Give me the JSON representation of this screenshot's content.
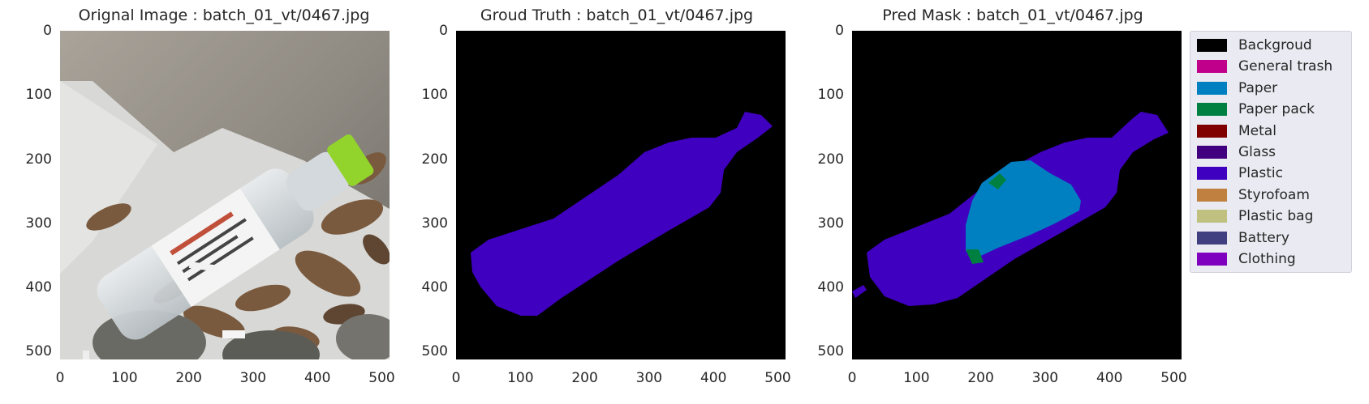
{
  "panels": [
    {
      "title": "Orignal Image : batch_01_vt/0467.jpg"
    },
    {
      "title": "Groud Truth : batch_01_vt/0467.jpg"
    },
    {
      "title": "Pred Mask : batch_01_vt/0467.jpg"
    }
  ],
  "axis": {
    "yticks": [
      "0",
      "100",
      "200",
      "300",
      "400",
      "500"
    ],
    "xticks": [
      "0",
      "100",
      "200",
      "300",
      "400",
      "500"
    ],
    "range": [
      0,
      512
    ]
  },
  "legend": [
    {
      "label": "Backgroud",
      "color": "#000000"
    },
    {
      "label": "General trash",
      "color": "#c0008a"
    },
    {
      "label": "Paper",
      "color": "#0080c0"
    },
    {
      "label": "Paper pack",
      "color": "#008040"
    },
    {
      "label": "Metal",
      "color": "#800000"
    },
    {
      "label": "Glass",
      "color": "#400080"
    },
    {
      "label": "Plastic",
      "color": "#4000c0"
    },
    {
      "label": "Styrofoam",
      "color": "#c08040"
    },
    {
      "label": "Plastic bag",
      "color": "#c0c080"
    },
    {
      "label": "Battery",
      "color": "#404080"
    },
    {
      "label": "Clothing",
      "color": "#8000c0"
    }
  ]
}
